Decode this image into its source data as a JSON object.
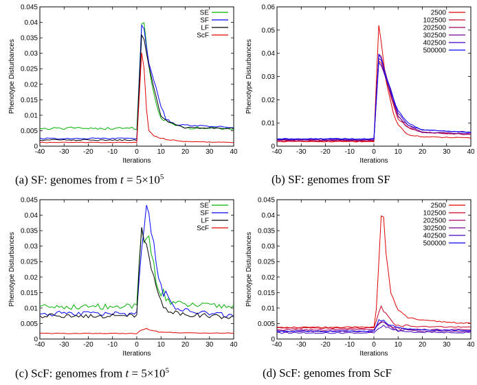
{
  "chart_data": [
    {
      "type": "line",
      "caption": "(a) SF: genomes from t=5×10^5",
      "caption_parts": {
        "prefix": "(a) SF: genomes from ",
        "var": "t",
        "eq": " = 5×10",
        "exp": "5"
      },
      "xlabel": "Iterations",
      "ylabel": "Phenotype Disturbances",
      "xlim": [
        -40,
        40
      ],
      "ylim": [
        0,
        0.045
      ],
      "xticks": [
        -40,
        -30,
        -20,
        -10,
        0,
        10,
        20,
        30,
        40
      ],
      "yticks": [
        0,
        0.005,
        0.01,
        0.015,
        0.02,
        0.025,
        0.03,
        0.035,
        0.04,
        0.045
      ],
      "yticklabels": [
        "0",
        "0.005",
        "0.01",
        "0.015",
        "0.02",
        "0.025",
        "0.03",
        "0.035",
        "0.04",
        "0.045"
      ],
      "legend_position": "top-right",
      "series": [
        {
          "name": "SE",
          "color": "#00b000",
          "baseline": 0.0058,
          "noise": 0.0004,
          "shape": [
            [
              0,
              0.0058
            ],
            [
              2,
              0.04
            ],
            [
              3,
              0.0395
            ],
            [
              5,
              0.025
            ],
            [
              8,
              0.013
            ],
            [
              10,
              0.009
            ],
            [
              14,
              0.007
            ],
            [
              20,
              0.006
            ],
            [
              40,
              0.0055
            ]
          ]
        },
        {
          "name": "SF",
          "color": "#0000ff",
          "baseline": 0.0025,
          "noise": 0.0002,
          "shape": [
            [
              0,
              0.0028
            ],
            [
              2,
              0.039
            ],
            [
              3,
              0.0375
            ],
            [
              5,
              0.027
            ],
            [
              8,
              0.019
            ],
            [
              10,
              0.013
            ],
            [
              12,
              0.009
            ],
            [
              16,
              0.007
            ],
            [
              40,
              0.006
            ]
          ]
        },
        {
          "name": "LF",
          "color": "#000000",
          "baseline": 0.002,
          "noise": 0.0002,
          "shape": [
            [
              0,
              0.002
            ],
            [
              2,
              0.0355
            ],
            [
              3,
              0.0345
            ],
            [
              5,
              0.026
            ],
            [
              8,
              0.016
            ],
            [
              10,
              0.01
            ],
            [
              14,
              0.0075
            ],
            [
              20,
              0.006
            ],
            [
              40,
              0.0058
            ]
          ]
        },
        {
          "name": "ScF",
          "color": "#e00000",
          "baseline": 0.0012,
          "noise": 0.0001,
          "shape": [
            [
              0,
              0.0012
            ],
            [
              2,
              0.03
            ],
            [
              3,
              0.025
            ],
            [
              4,
              0.012
            ],
            [
              5,
              0.005
            ],
            [
              7,
              0.0035
            ],
            [
              10,
              0.0025
            ],
            [
              20,
              0.0015
            ],
            [
              40,
              0.0012
            ]
          ]
        }
      ]
    },
    {
      "type": "line",
      "caption": "(b) SF: genomes from SF",
      "caption_parts": {
        "prefix": "(b) SF: genomes from SF",
        "var": "",
        "eq": "",
        "exp": ""
      },
      "xlabel": "Iterations",
      "ylabel": "Phenotype Disturbances",
      "xlim": [
        -40,
        40
      ],
      "ylim": [
        0,
        0.06
      ],
      "xticks": [
        -40,
        -30,
        -20,
        -10,
        0,
        10,
        20,
        30,
        40
      ],
      "yticks": [
        0,
        0.01,
        0.02,
        0.03,
        0.04,
        0.05,
        0.06
      ],
      "yticklabels": [
        "0",
        "0.01",
        "0.02",
        "0.03",
        "0.04",
        "0.05",
        "0.06"
      ],
      "legend_position": "top-right",
      "series": [
        {
          "name": "2500",
          "color": "#e00000",
          "baseline": 0.002,
          "noise": 0.0002,
          "shape": [
            [
              0,
              0.002
            ],
            [
              2,
              0.052
            ],
            [
              3,
              0.045
            ],
            [
              5,
              0.028
            ],
            [
              8,
              0.014
            ],
            [
              10,
              0.009
            ],
            [
              14,
              0.005
            ],
            [
              20,
              0.004
            ],
            [
              40,
              0.0035
            ]
          ]
        },
        {
          "name": "102500",
          "color": "#c80020",
          "baseline": 0.0022,
          "noise": 0.0002,
          "shape": [
            [
              0,
              0.0022
            ],
            [
              2,
              0.037
            ],
            [
              3,
              0.036
            ],
            [
              5,
              0.029
            ],
            [
              8,
              0.018
            ],
            [
              10,
              0.012
            ],
            [
              14,
              0.008
            ],
            [
              20,
              0.006
            ],
            [
              40,
              0.005
            ]
          ]
        },
        {
          "name": "202500",
          "color": "#a00060",
          "baseline": 0.0025,
          "noise": 0.0002,
          "shape": [
            [
              0,
              0.0025
            ],
            [
              2,
              0.04
            ],
            [
              3,
              0.039
            ],
            [
              5,
              0.031
            ],
            [
              8,
              0.02
            ],
            [
              10,
              0.013
            ],
            [
              14,
              0.008
            ],
            [
              20,
              0.006
            ],
            [
              40,
              0.005
            ]
          ]
        },
        {
          "name": "302500",
          "color": "#700090",
          "baseline": 0.0027,
          "noise": 0.0002,
          "shape": [
            [
              0,
              0.0027
            ],
            [
              2,
              0.038
            ],
            [
              3,
              0.037
            ],
            [
              5,
              0.03
            ],
            [
              8,
              0.019
            ],
            [
              10,
              0.013
            ],
            [
              14,
              0.009
            ],
            [
              20,
              0.006
            ],
            [
              40,
              0.0055
            ]
          ]
        },
        {
          "name": "402500",
          "color": "#4000c0",
          "baseline": 0.003,
          "noise": 0.0002,
          "shape": [
            [
              0,
              0.003
            ],
            [
              2,
              0.036
            ],
            [
              3,
              0.035
            ],
            [
              5,
              0.029
            ],
            [
              8,
              0.02
            ],
            [
              10,
              0.014
            ],
            [
              14,
              0.009
            ],
            [
              20,
              0.007
            ],
            [
              40,
              0.006
            ]
          ]
        },
        {
          "name": "500000",
          "color": "#0000ff",
          "baseline": 0.0032,
          "noise": 0.0002,
          "shape": [
            [
              0,
              0.0032
            ],
            [
              2,
              0.039
            ],
            [
              3,
              0.038
            ],
            [
              5,
              0.03
            ],
            [
              8,
              0.021
            ],
            [
              10,
              0.015
            ],
            [
              14,
              0.01
            ],
            [
              20,
              0.007
            ],
            [
              40,
              0.006
            ]
          ]
        }
      ]
    },
    {
      "type": "line",
      "caption": "(c) ScF: genomes from t=5×10^5",
      "caption_parts": {
        "prefix": "(c) ScF: genomes from ",
        "var": "t",
        "eq": " = 5×10",
        "exp": "5"
      },
      "xlabel": "Iterations",
      "ylabel": "Phenotype Disturbances",
      "xlim": [
        -40,
        40
      ],
      "ylim": [
        0,
        0.045
      ],
      "xticks": [
        -40,
        -30,
        -20,
        -10,
        0,
        10,
        20,
        30,
        40
      ],
      "yticks": [
        0,
        0.005,
        0.01,
        0.015,
        0.02,
        0.025,
        0.03,
        0.035,
        0.04,
        0.045
      ],
      "yticklabels": [
        "0",
        "0.005",
        "0.01",
        "0.015",
        "0.02",
        "0.025",
        "0.03",
        "0.035",
        "0.04",
        "0.045"
      ],
      "legend_position": "top-right",
      "series": [
        {
          "name": "SE",
          "color": "#00b000",
          "baseline": 0.0105,
          "noise": 0.0009,
          "shape": [
            [
              0,
              0.0105
            ],
            [
              2,
              0.036
            ],
            [
              3,
              0.03
            ],
            [
              5,
              0.033
            ],
            [
              8,
              0.02
            ],
            [
              10,
              0.015
            ],
            [
              14,
              0.012
            ],
            [
              20,
              0.011
            ],
            [
              40,
              0.0105
            ]
          ]
        },
        {
          "name": "SF",
          "color": "#0000ff",
          "baseline": 0.0082,
          "noise": 0.0009,
          "shape": [
            [
              0,
              0.0082
            ],
            [
              2,
              0.03
            ],
            [
              4,
              0.0445
            ],
            [
              6,
              0.034
            ],
            [
              8,
              0.026
            ],
            [
              10,
              0.017
            ],
            [
              14,
              0.011
            ],
            [
              20,
              0.009
            ],
            [
              40,
              0.0075
            ]
          ]
        },
        {
          "name": "LF",
          "color": "#000000",
          "baseline": 0.0075,
          "noise": 0.0007,
          "shape": [
            [
              0,
              0.0075
            ],
            [
              2,
              0.037
            ],
            [
              3,
              0.032
            ],
            [
              5,
              0.028
            ],
            [
              8,
              0.016
            ],
            [
              10,
              0.012
            ],
            [
              14,
              0.009
            ],
            [
              20,
              0.008
            ],
            [
              40,
              0.007
            ]
          ]
        },
        {
          "name": "ScF",
          "color": "#e00000",
          "baseline": 0.0018,
          "noise": 0.0001,
          "shape": [
            [
              0,
              0.0018
            ],
            [
              2,
              0.003
            ],
            [
              4,
              0.0035
            ],
            [
              6,
              0.0028
            ],
            [
              10,
              0.0022
            ],
            [
              20,
              0.002
            ],
            [
              40,
              0.0019
            ]
          ]
        }
      ]
    },
    {
      "type": "line",
      "caption": "(d) ScF: genomes from ScF",
      "caption_parts": {
        "prefix": "(d) ScF: genomes from ScF",
        "var": "",
        "eq": "",
        "exp": ""
      },
      "xlabel": "Iterations",
      "ylabel": "Phenotype Disturbances",
      "xlim": [
        -40,
        40
      ],
      "ylim": [
        0,
        0.045
      ],
      "xticks": [
        -40,
        -30,
        -20,
        -10,
        0,
        10,
        20,
        30,
        40
      ],
      "yticks": [
        0,
        0.005,
        0.01,
        0.015,
        0.02,
        0.025,
        0.03,
        0.035,
        0.04,
        0.045
      ],
      "yticklabels": [
        "0",
        "0.005",
        "0.01",
        "0.015",
        "0.02",
        "0.025",
        "0.03",
        "0.035",
        "0.04",
        "0.045"
      ],
      "legend_position": "top-right",
      "series": [
        {
          "name": "2500",
          "color": "#e00000",
          "baseline": 0.0038,
          "noise": 0.0002,
          "shape": [
            [
              0,
              0.0038
            ],
            [
              1,
              0.01
            ],
            [
              3,
              0.04
            ],
            [
              4,
              0.039
            ],
            [
              5,
              0.028
            ],
            [
              7,
              0.015
            ],
            [
              10,
              0.009
            ],
            [
              14,
              0.007
            ],
            [
              20,
              0.006
            ],
            [
              40,
              0.005
            ]
          ]
        },
        {
          "name": "102500",
          "color": "#c80020",
          "baseline": 0.0035,
          "noise": 0.0002,
          "shape": [
            [
              0,
              0.0035
            ],
            [
              2,
              0.009
            ],
            [
              3,
              0.0105
            ],
            [
              5,
              0.008
            ],
            [
              8,
              0.005
            ],
            [
              12,
              0.0042
            ],
            [
              20,
              0.004
            ],
            [
              40,
              0.0038
            ]
          ]
        },
        {
          "name": "202500",
          "color": "#a00060",
          "baseline": 0.003,
          "noise": 0.0002,
          "shape": [
            [
              0,
              0.003
            ],
            [
              2,
              0.005
            ],
            [
              4,
              0.0058
            ],
            [
              6,
              0.0045
            ],
            [
              10,
              0.0035
            ],
            [
              20,
              0.003
            ],
            [
              40,
              0.003
            ]
          ]
        },
        {
          "name": "302500",
          "color": "#700090",
          "baseline": 0.0025,
          "noise": 0.0002,
          "shape": [
            [
              0,
              0.0025
            ],
            [
              2,
              0.005
            ],
            [
              4,
              0.0055
            ],
            [
              6,
              0.0042
            ],
            [
              10,
              0.003
            ],
            [
              20,
              0.0026
            ],
            [
              40,
              0.0025
            ]
          ]
        },
        {
          "name": "402500",
          "color": "#4000c0",
          "baseline": 0.002,
          "noise": 0.0002,
          "shape": [
            [
              0,
              0.002
            ],
            [
              2,
              0.0035
            ],
            [
              4,
              0.0042
            ],
            [
              6,
              0.0035
            ],
            [
              10,
              0.0025
            ],
            [
              20,
              0.0022
            ],
            [
              40,
              0.0021
            ]
          ]
        },
        {
          "name": "500000",
          "color": "#0000ff",
          "baseline": 0.0025,
          "noise": 0.0002,
          "shape": [
            [
              0,
              0.0025
            ],
            [
              2,
              0.006
            ],
            [
              4,
              0.0062
            ],
            [
              6,
              0.0048
            ],
            [
              10,
              0.0035
            ],
            [
              20,
              0.003
            ],
            [
              40,
              0.0028
            ]
          ]
        }
      ]
    }
  ]
}
